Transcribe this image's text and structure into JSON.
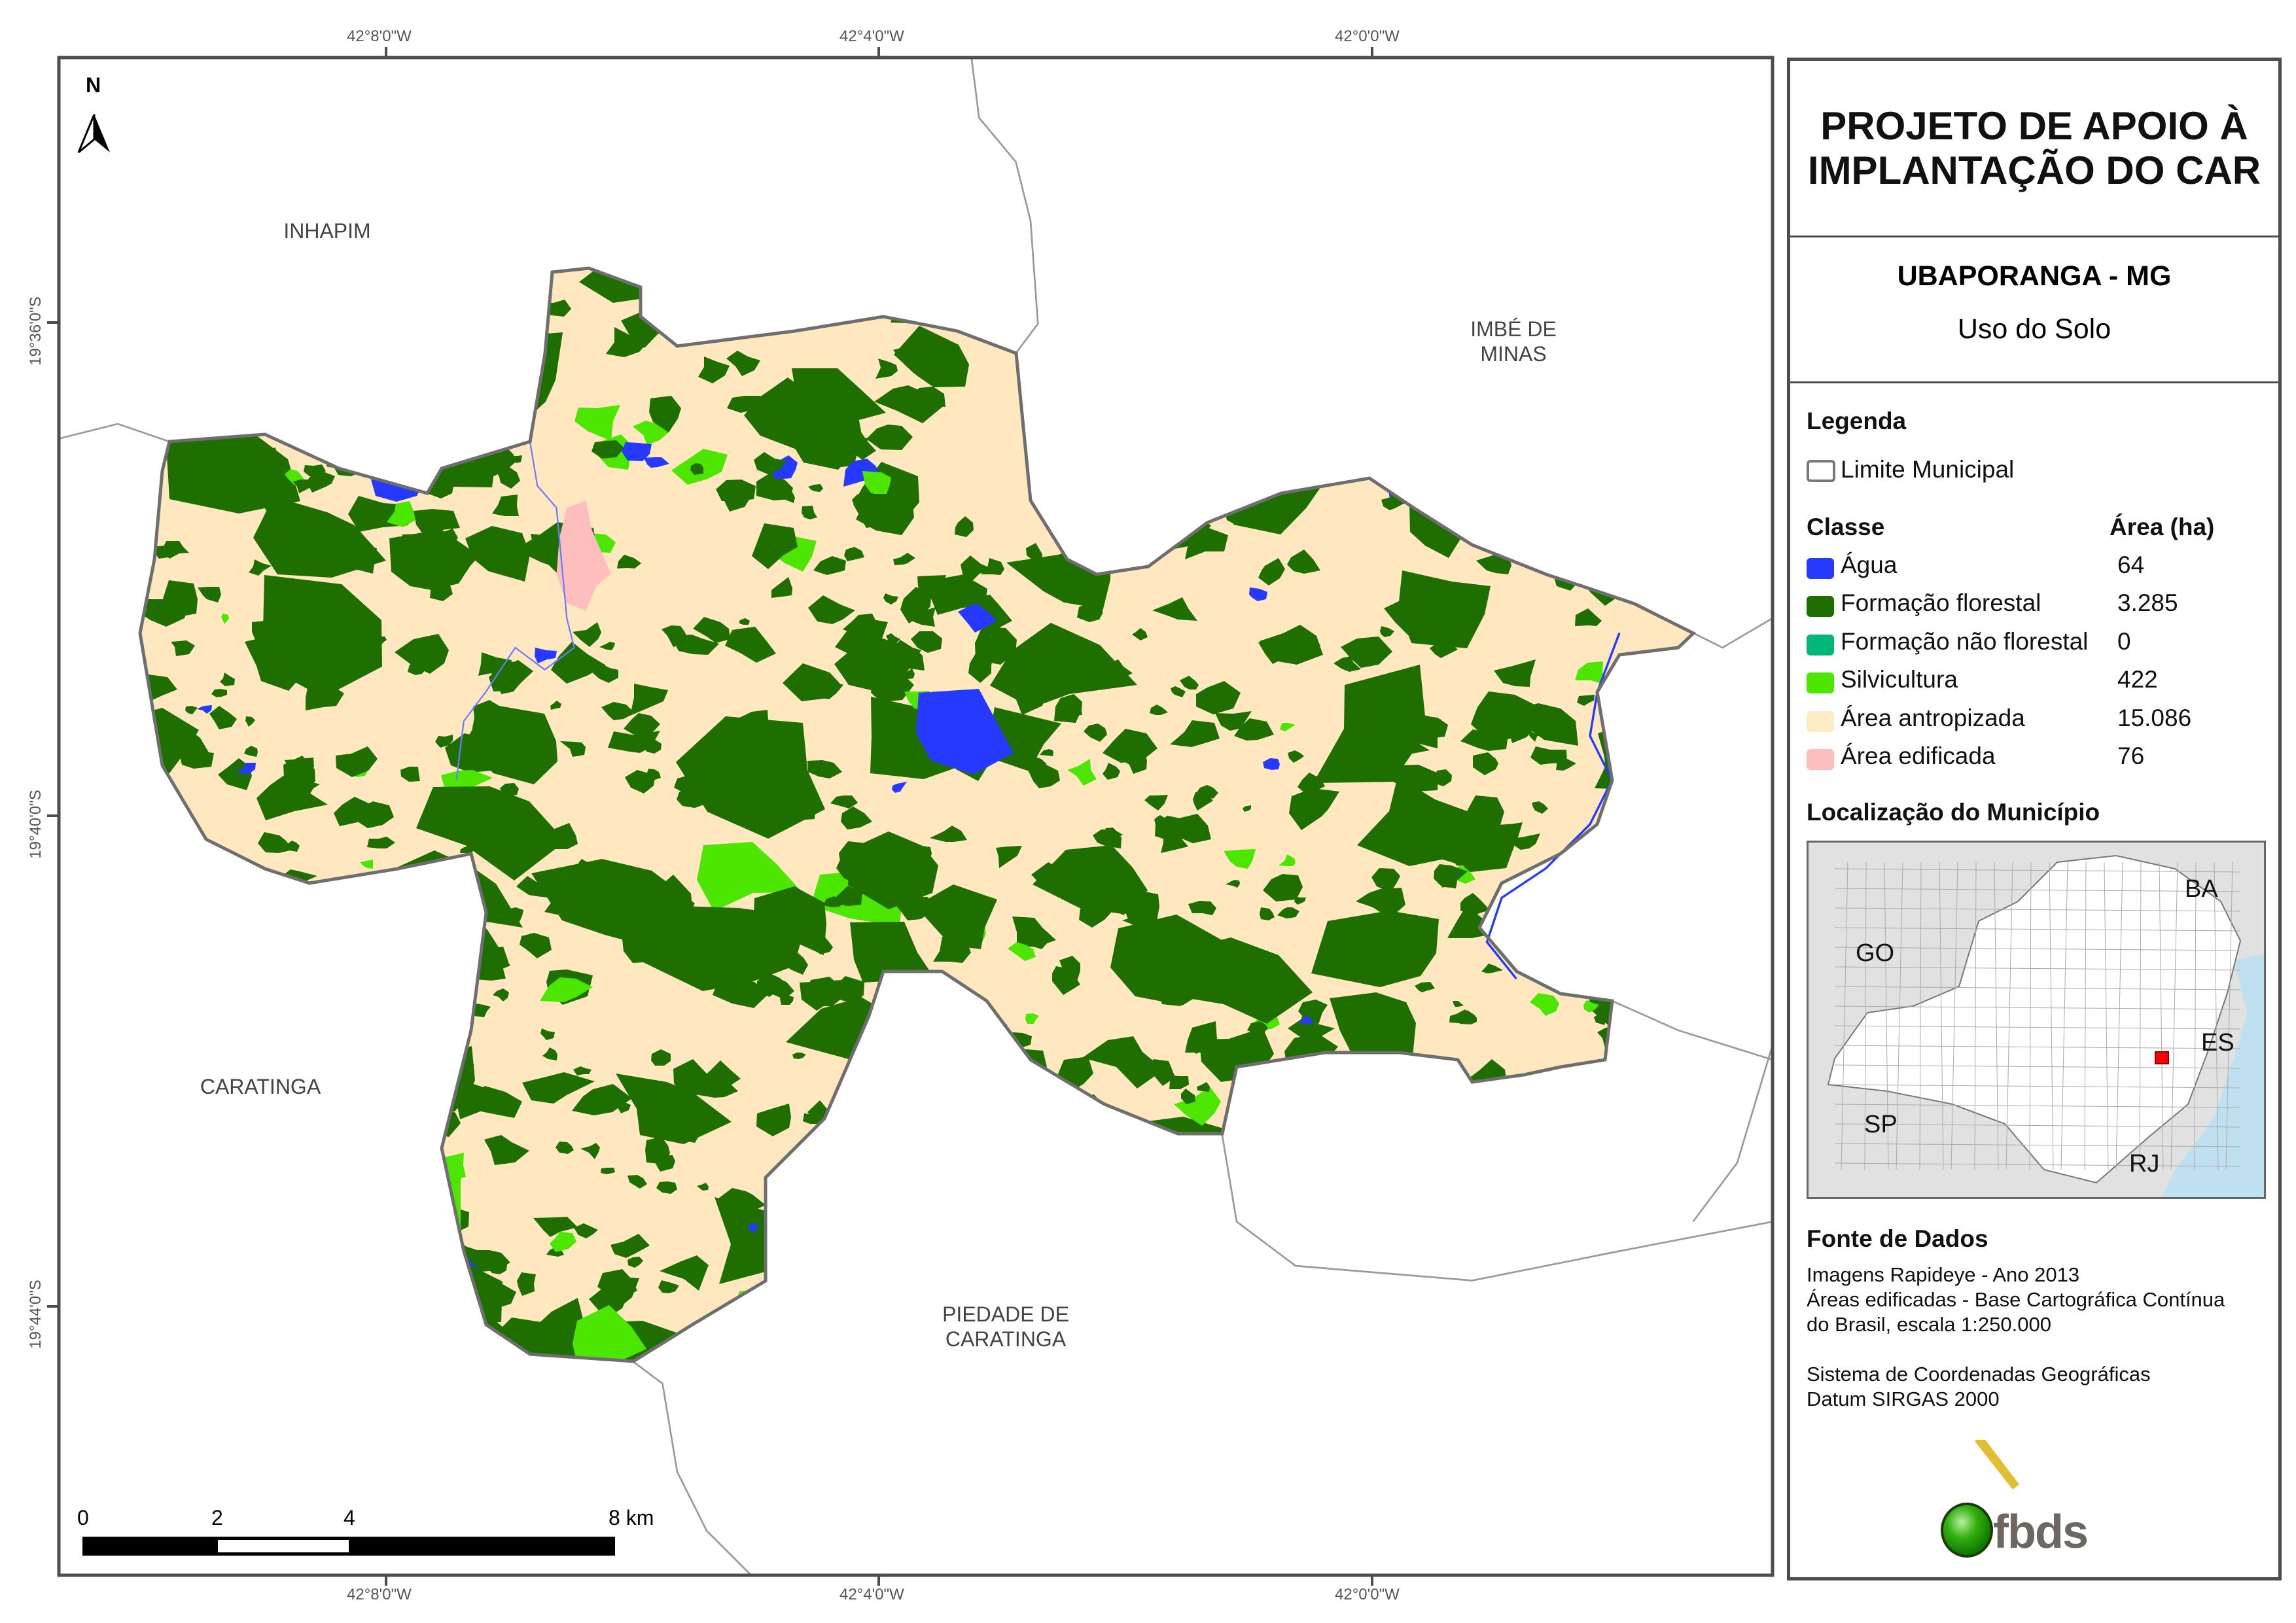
{
  "title": "PROJETO DE APOIO À IMPLANTAÇÃO DO CAR",
  "title_lines": [
    "PROJETO DE APOIO À",
    "IMPLANTAÇÃO DO CAR"
  ],
  "municipality": "UBAPORANGA - MG",
  "subtitle": "Uso do Solo",
  "legend": {
    "heading": "Legenda",
    "boundary_label": "Limite Municipal",
    "class_header": "Classe",
    "area_header": "Área (ha)",
    "classes": [
      {
        "label": "Água",
        "area": "64",
        "color": "#2639ff"
      },
      {
        "label": "Formação florestal",
        "area": "3.285",
        "color": "#1e6e00"
      },
      {
        "label": "Formação não florestal",
        "area": "0",
        "color": "#00b77a"
      },
      {
        "label": "Silvicultura",
        "area": "422",
        "color": "#4ce600"
      },
      {
        "label": "Área antropizada",
        "area": "15.086",
        "color": "#ffebc4"
      },
      {
        "label": "Área edificada",
        "area": "76",
        "color": "#ffbebe"
      }
    ]
  },
  "location": {
    "heading": "Localização do Município",
    "labels": [
      "GO",
      "BA",
      "ES",
      "SP",
      "RJ"
    ]
  },
  "sources": {
    "heading": "Fonte de Dados",
    "lines": [
      "Imagens Rapideye - Ano 2013",
      "Áreas edificadas - Base Cartográfica Contínua",
      "do Brasil, escala 1:250.000",
      "Sistema de Coordenadas Geográficas",
      "Datum SIRGAS 2000"
    ]
  },
  "logo_text": "fbds",
  "north_label": "N",
  "scale_bar": {
    "labels": [
      "0",
      "2",
      "4",
      "8 km"
    ]
  },
  "grid": {
    "longitudes": [
      "42°8'0\"W",
      "42°4'0\"W",
      "42°0'0\"W"
    ],
    "latitudes": [
      "19°36'0\"S",
      "19°40'0\"S",
      "19°44'0\"S"
    ]
  },
  "neighbors": [
    "INHAPIM",
    "IMBÉ DE\nMINAS",
    "CARATINGA",
    "PIEDADE DE\nCARATINGA"
  ]
}
